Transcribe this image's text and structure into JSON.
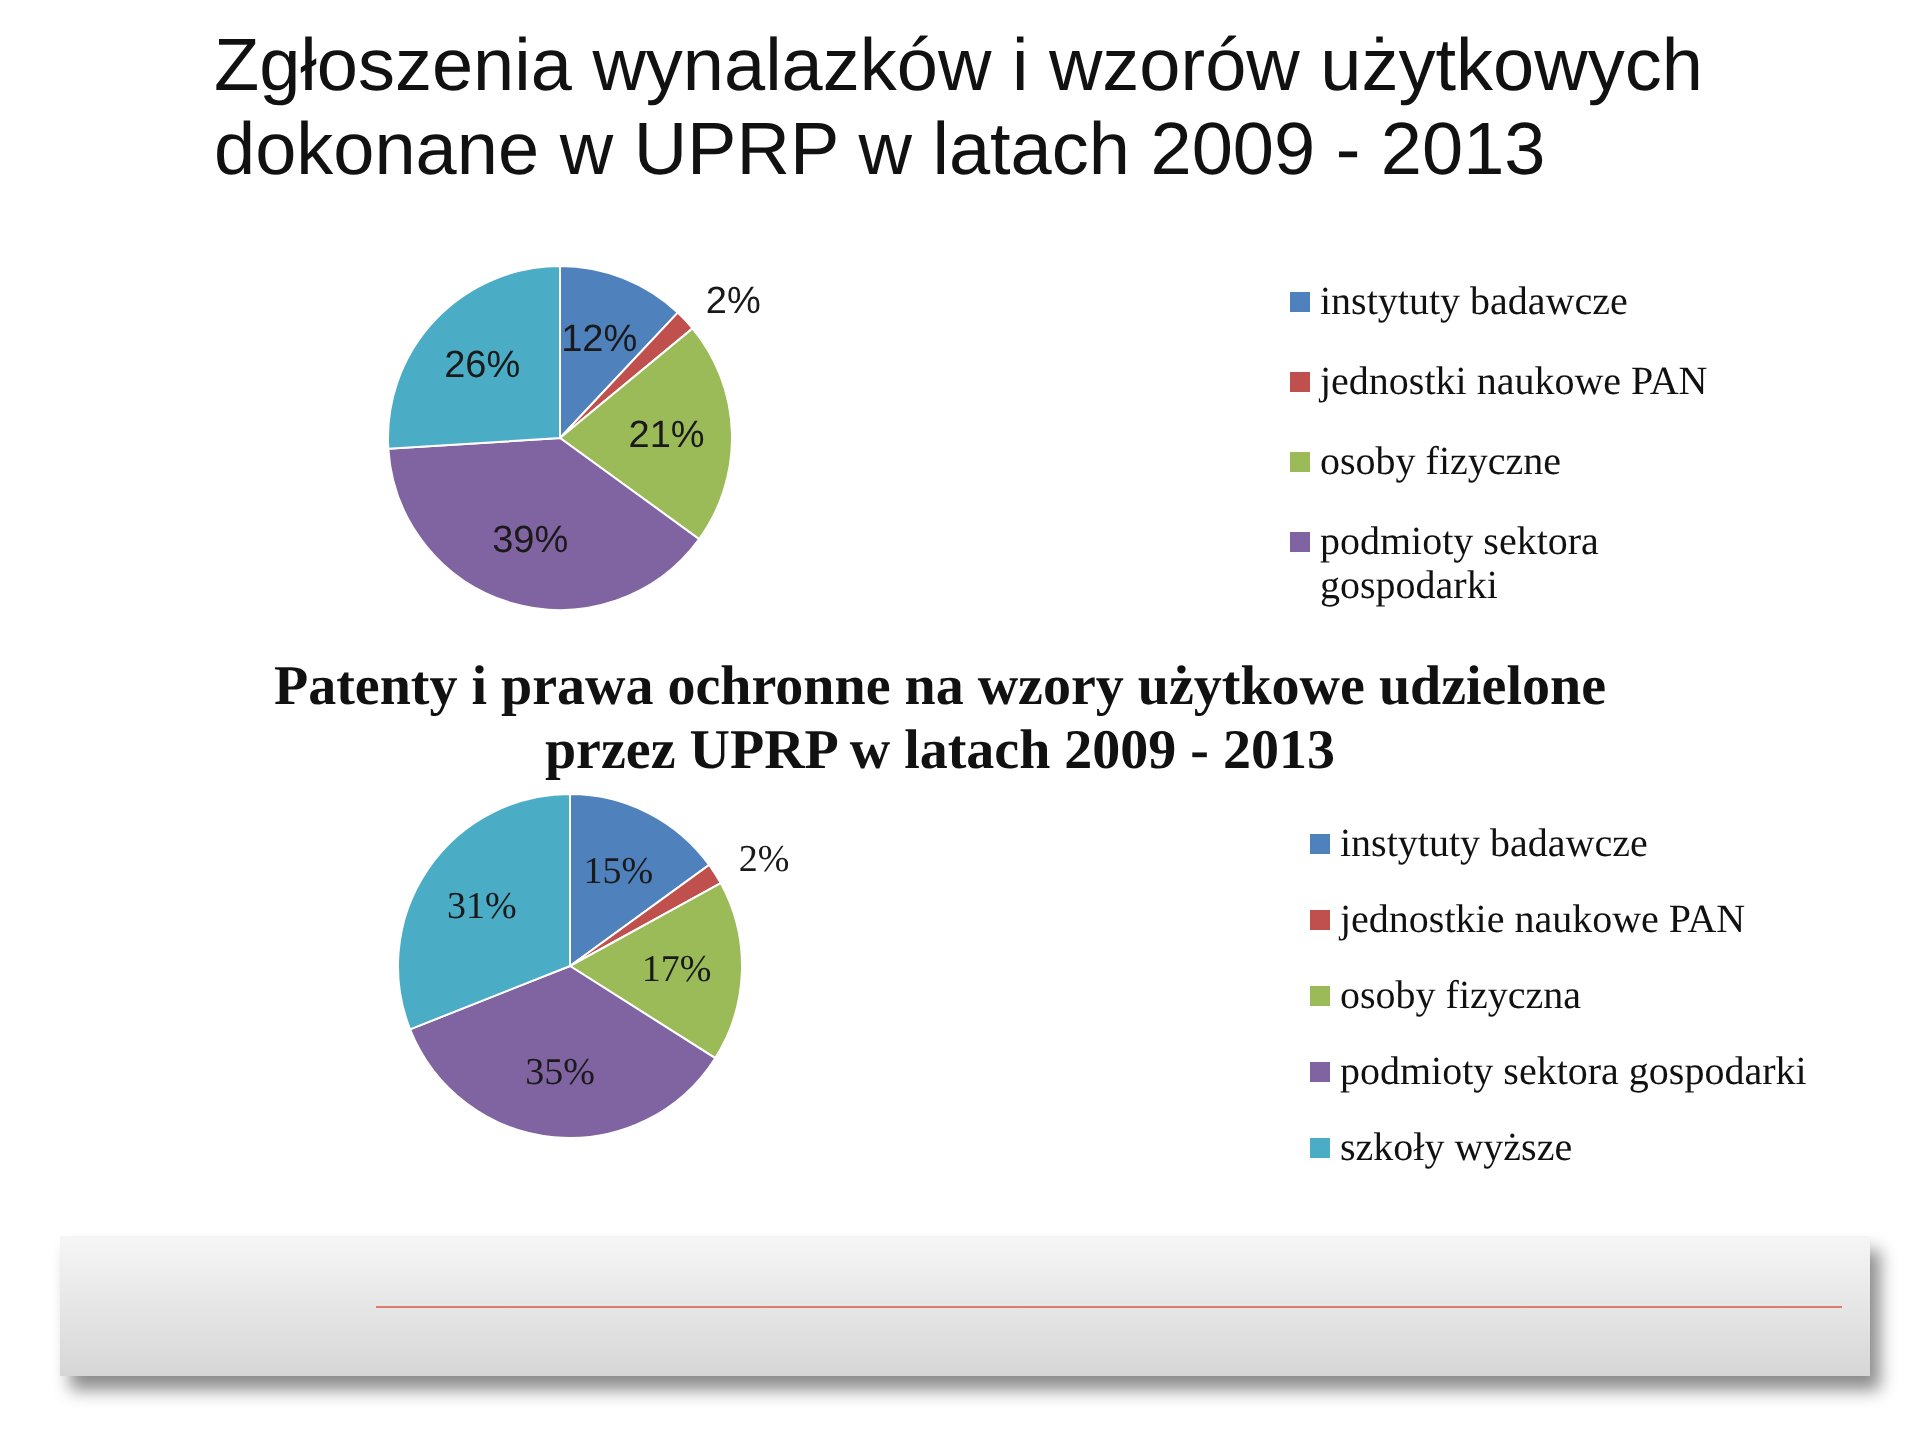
{
  "chart_data": [
    {
      "type": "pie",
      "title": "Zgłoszenia wynalazków i wzorów użytkowych dokonane w UPRP w latach 2009 - 2013",
      "categories": [
        "instytuty badawcze",
        "jednostki naukowe PAN",
        "osoby fizyczne",
        "podmioty sektora gospodarki",
        null
      ],
      "values": [
        12,
        2,
        21,
        39,
        26
      ],
      "colors": [
        "#4f81bd",
        "#c0504d",
        "#9bbb59",
        "#8064a2",
        "#4bacc6"
      ],
      "value_labels": [
        "12%",
        "2%",
        "21%",
        "39%",
        "26%"
      ],
      "legend": "right"
    },
    {
      "type": "pie",
      "title": "Patenty i prawa ochronne na wzory użytkowe udzielone przez UPRP w latach 2009 - 2013",
      "categories": [
        "instytuty badawcze",
        "jednostkie naukowe PAN",
        "osoby fizyczna",
        "podmioty sektora gospodarki",
        "szkoły wyższe"
      ],
      "values": [
        15,
        2,
        17,
        35,
        31
      ],
      "colors": [
        "#4f81bd",
        "#c0504d",
        "#9bbb59",
        "#8064a2",
        "#4bacc6"
      ],
      "value_labels": [
        "15%",
        "2%",
        "17%",
        "35%",
        "31%"
      ],
      "legend": "right"
    }
  ]
}
